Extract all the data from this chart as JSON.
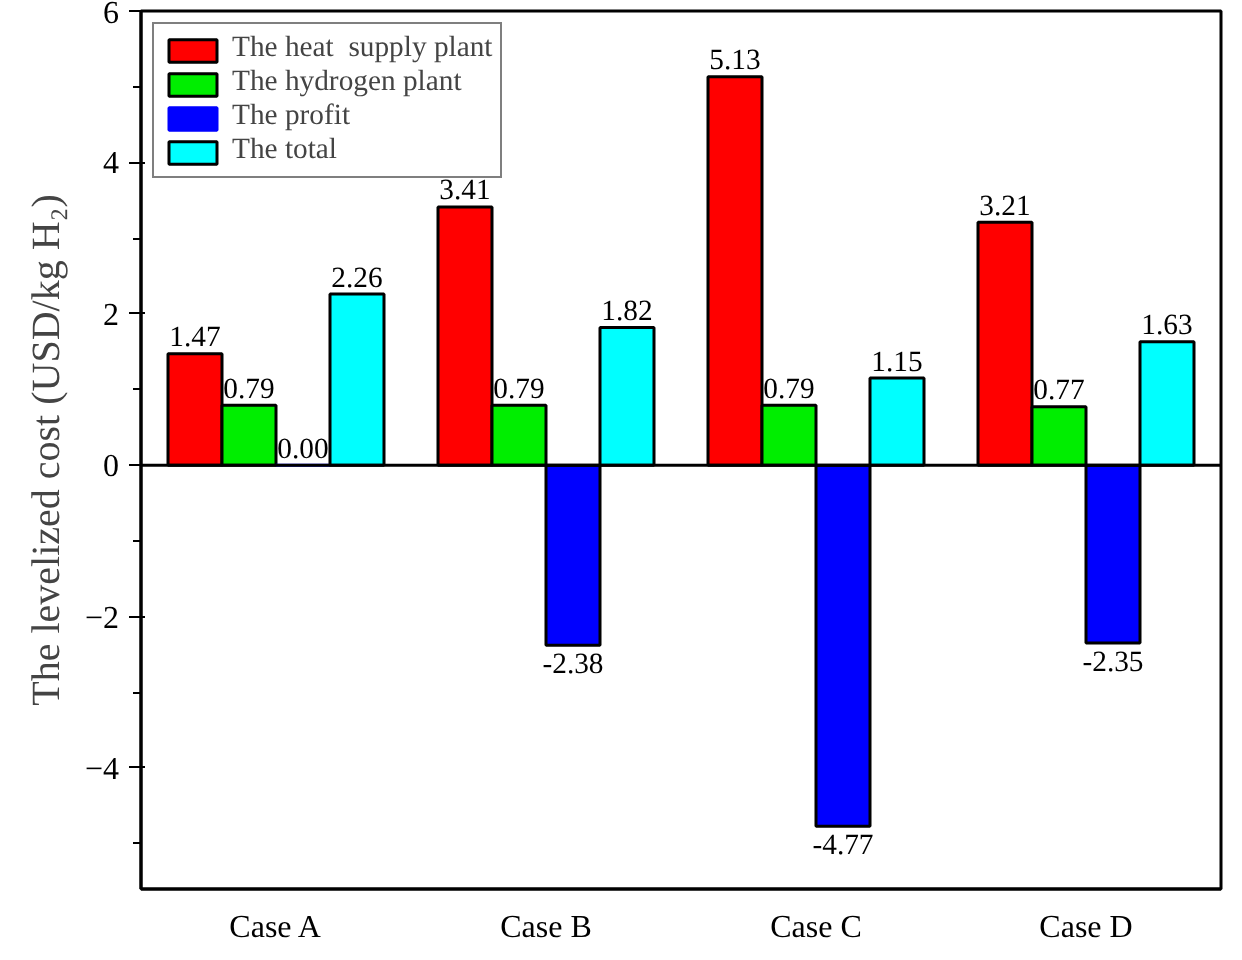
{
  "chart_data": {
    "type": "bar",
    "ylabel": "The levelized cost (USD/kg H₂)",
    "categories": [
      "Case A",
      "Case B",
      "Case C",
      "Case D"
    ],
    "series": [
      {
        "name": "The heat  supply plant",
        "color": "#ff0000",
        "values": [
          1.47,
          3.41,
          5.13,
          3.21
        ],
        "value_labels": [
          "1.47",
          "3.41",
          "5.13",
          "3.21"
        ]
      },
      {
        "name": "The hydrogen plant",
        "color": "#00ee00",
        "values": [
          0.79,
          0.79,
          0.79,
          0.77
        ],
        "value_labels": [
          "0.79",
          "0.79",
          "0.79",
          "0.77"
        ]
      },
      {
        "name": "The profit",
        "color": "#0000ff",
        "values": [
          0.0,
          -2.38,
          -4.77,
          -2.35
        ],
        "value_labels": [
          "0.00",
          "-2.38",
          "-4.77",
          "-2.35"
        ]
      },
      {
        "name": "The total",
        "color": "#00ffff",
        "values": [
          2.26,
          1.82,
          1.15,
          1.63
        ],
        "value_labels": [
          "2.26",
          "1.82",
          "1.15",
          "1.63"
        ]
      }
    ],
    "ylim": [
      -5.6,
      6
    ],
    "yticks": [
      -4,
      -2,
      0,
      2,
      4,
      6
    ],
    "grid": false,
    "legend": "top left",
    "ref_lines": [
      {
        "axis": "y",
        "value": 0
      }
    ]
  }
}
